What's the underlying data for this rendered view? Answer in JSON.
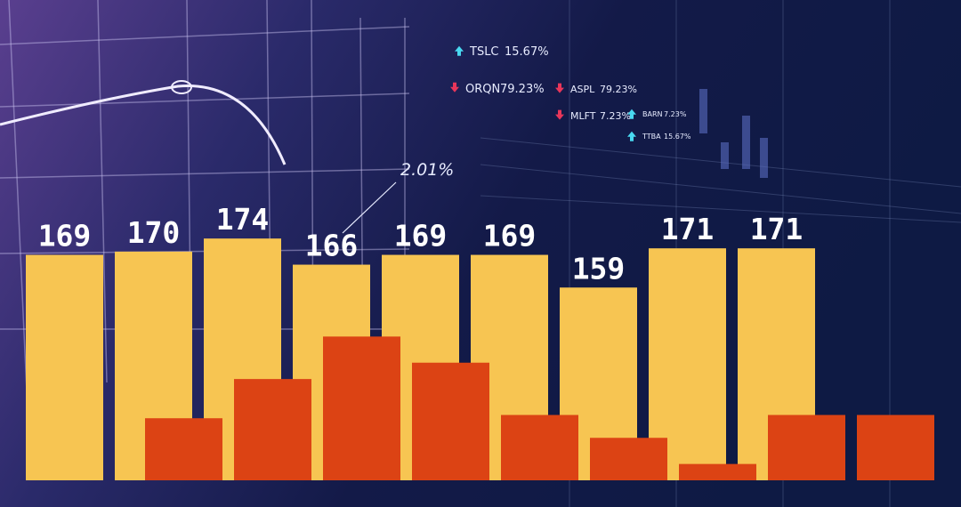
{
  "chart_data": {
    "type": "bar",
    "ylim": [
      100,
      247
    ],
    "series": [
      {
        "color": "#f7c552",
        "values": [
          169,
          170,
          174,
          166,
          169,
          169,
          159,
          171,
          171
        ]
      },
      {
        "color": "#dc4314",
        "values": [
          119,
          131,
          144,
          136,
          120,
          113,
          105,
          120,
          120
        ]
      }
    ],
    "annotations": [
      {
        "symbol": "TSLC",
        "change": "15.67%",
        "direction": "up"
      },
      {
        "symbol": "ORQN",
        "change": "79.23%",
        "direction": "down"
      },
      {
        "symbol": "ASPL",
        "change": "79.23%",
        "direction": "down"
      },
      {
        "symbol": "MLFT",
        "change": "7.23%",
        "direction": "down"
      },
      {
        "symbol": "BARN",
        "change": "7.23%",
        "direction": "up"
      },
      {
        "symbol": "TTBA",
        "change": "15.67%",
        "direction": "up"
      }
    ],
    "chart_note": "2.01%"
  }
}
